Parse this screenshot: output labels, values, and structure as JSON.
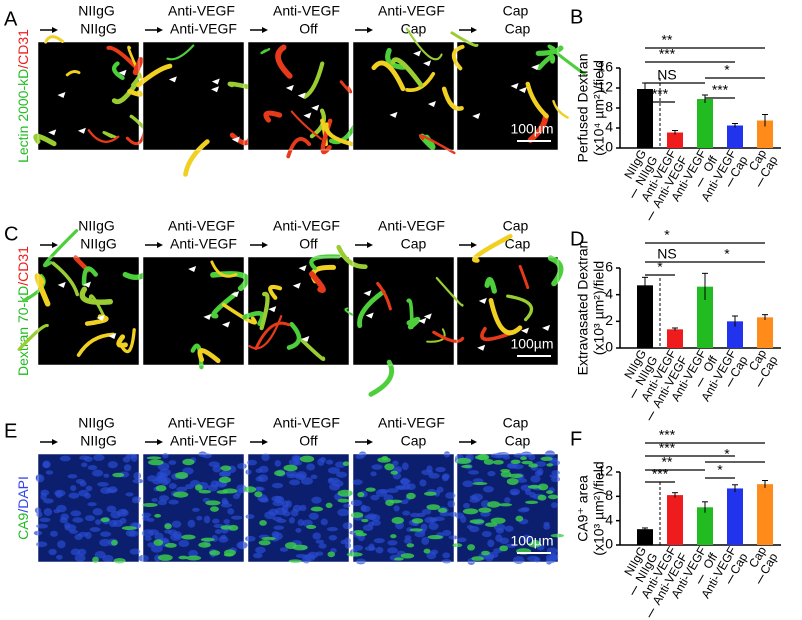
{
  "image_panels": [
    {
      "label": "A",
      "side_label": [
        "Lectin 2000-kD",
        "/CD31"
      ],
      "headers": [
        [
          "NIIgG",
          "NIIgG"
        ],
        [
          "Anti-VEGF",
          "Anti-VEGF"
        ],
        [
          "Anti-VEGF",
          "Off"
        ],
        [
          "Anti-VEGF",
          "Cap"
        ],
        [
          "Cap",
          "Cap"
        ]
      ],
      "scale_bar": "100µm"
    },
    {
      "label": "C",
      "side_label": [
        "Dextran 70-kD",
        "/CD31"
      ],
      "headers": [
        [
          "NIIgG",
          "NIIgG"
        ],
        [
          "Anti-VEGF",
          "Anti-VEGF"
        ],
        [
          "Anti-VEGF",
          "Off"
        ],
        [
          "Anti-VEGF",
          "Cap"
        ],
        [
          "Cap",
          "Cap"
        ]
      ],
      "scale_bar": "100µm"
    },
    {
      "label": "E",
      "side_label": [
        "CA9",
        "/DAPI"
      ],
      "headers": [
        [
          "NIIgG",
          "NIIgG"
        ],
        [
          "Anti-VEGF",
          "Anti-VEGF"
        ],
        [
          "Anti-VEGF",
          "Off"
        ],
        [
          "Anti-VEGF",
          "Cap"
        ],
        [
          "Cap",
          "Cap"
        ]
      ],
      "scale_bar": "100µm"
    }
  ],
  "chart_data": [
    {
      "type": "bar",
      "panel": "B",
      "y_label": [
        "Perfused Dextran",
        "(x10⁴ µm²)/field"
      ],
      "categories": [
        [
          "NIIgG",
          "NIIgG"
        ],
        [
          "Anti-VEGF",
          "Anti-VEGF"
        ],
        [
          "Anti-VEGF",
          "Off"
        ],
        [
          "Anti-VEGF",
          "Cap"
        ],
        [
          "Cap",
          "Cap"
        ]
      ],
      "values": [
        11.8,
        3.1,
        9.8,
        4.5,
        5.5
      ],
      "errors": [
        1.2,
        0.4,
        0.8,
        0.4,
        1.2
      ],
      "colors": [
        "#000000",
        "#ee1c1c",
        "#22bb22",
        "#2233ee",
        "#ff8c1a"
      ],
      "ylim": [
        0,
        16
      ],
      "yticks": [
        0,
        4,
        8,
        12,
        16
      ],
      "comparisons": [
        {
          "from": 0,
          "to": 4,
          "label": "**"
        },
        {
          "from": 0,
          "to": 3,
          "label": "***"
        },
        {
          "from": 0,
          "to": 2,
          "label": "NS"
        },
        {
          "from": 0,
          "to": 1,
          "label": "***"
        },
        {
          "from": 2,
          "to": 4,
          "label": "*"
        },
        {
          "from": 2,
          "to": 3,
          "label": "***"
        }
      ]
    },
    {
      "type": "bar",
      "panel": "D",
      "y_label": [
        "Extravasated Dextran",
        "(x10³ µm²)/field"
      ],
      "categories": [
        [
          "NIIgG",
          "NIIgG"
        ],
        [
          "Anti-VEGF",
          "Anti-VEGF"
        ],
        [
          "Anti-VEGF",
          "Off"
        ],
        [
          "Anti-VEGF",
          "Cap"
        ],
        [
          "Cap",
          "Cap"
        ]
      ],
      "values": [
        4.7,
        1.4,
        4.6,
        2.0,
        2.3
      ],
      "errors": [
        0.6,
        0.1,
        1.0,
        0.4,
        0.2
      ],
      "colors": [
        "#000000",
        "#ee1c1c",
        "#22bb22",
        "#2233ee",
        "#ff8c1a"
      ],
      "ylim": [
        0,
        6
      ],
      "yticks": [
        0,
        2,
        4,
        6
      ],
      "comparisons": [
        {
          "from": 0,
          "to": 4,
          "label": "*"
        },
        {
          "from": 0,
          "to": 2,
          "label": "NS"
        },
        {
          "from": 0,
          "to": 1,
          "label": "*"
        },
        {
          "from": 2,
          "to": 4,
          "label": "*"
        }
      ]
    },
    {
      "type": "bar",
      "panel": "F",
      "y_label": [
        "CA9⁺ area",
        "(x10³ µm²)/field"
      ],
      "categories": [
        [
          "NIIgG",
          "NIIgG"
        ],
        [
          "Anti-VEGF",
          "Anti-VEGF"
        ],
        [
          "Anti-VEGF",
          "Off"
        ],
        [
          "Anti-VEGF",
          "Cap"
        ],
        [
          "Cap",
          "Cap"
        ]
      ],
      "values": [
        2.6,
        8.2,
        6.2,
        9.3,
        10.0
      ],
      "errors": [
        0.2,
        0.4,
        0.9,
        0.6,
        0.6
      ],
      "colors": [
        "#000000",
        "#ee1c1c",
        "#22bb22",
        "#2233ee",
        "#ff8c1a"
      ],
      "ylim": [
        0,
        12
      ],
      "yticks": [
        0,
        4,
        8,
        12
      ],
      "comparisons": [
        {
          "from": 0,
          "to": 4,
          "label": "***"
        },
        {
          "from": 0,
          "to": 3,
          "label": "***"
        },
        {
          "from": 0,
          "to": 2,
          "label": "**"
        },
        {
          "from": 0,
          "to": 1,
          "label": "***"
        },
        {
          "from": 2,
          "to": 4,
          "label": "*"
        },
        {
          "from": 2,
          "to": 3,
          "label": "*"
        }
      ]
    }
  ]
}
